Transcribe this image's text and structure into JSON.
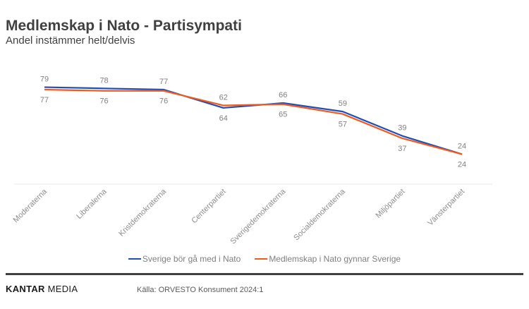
{
  "header": {
    "title": "Medlemskap i Nato - Partisympati",
    "subtitle": "Andel instämmer helt/delvis"
  },
  "chart_data": {
    "type": "line",
    "title": "Medlemskap i Nato - Partisympati",
    "subtitle": "Andel instämmer helt/delvis",
    "xlabel": "",
    "ylabel": "",
    "ylim": [
      0,
      100
    ],
    "grid": false,
    "legend_position": "bottom",
    "categories": [
      "Moderaterna",
      "Liberalerna",
      "Kristdemokraterna",
      "Centerpartiet",
      "Sverigedemokraterna",
      "Socialdemokraterna",
      "Miljöpartiet",
      "Vänsterpartiet"
    ],
    "series": [
      {
        "name": "Sverige bör gå med i Nato",
        "color": "#1f4eb4",
        "values": [
          79,
          78,
          77,
          62,
          66,
          59,
          39,
          24
        ]
      },
      {
        "name": "Medlemskap i Nato gynnar Sverige",
        "color": "#f05a1e",
        "values": [
          77,
          76,
          76,
          64,
          65,
          57,
          37,
          24
        ]
      }
    ]
  },
  "footer": {
    "brand_bold": "KANTAR",
    "brand_rest": " MEDIA",
    "source": "Källa: ORVESTO Konsument 2024:1"
  }
}
